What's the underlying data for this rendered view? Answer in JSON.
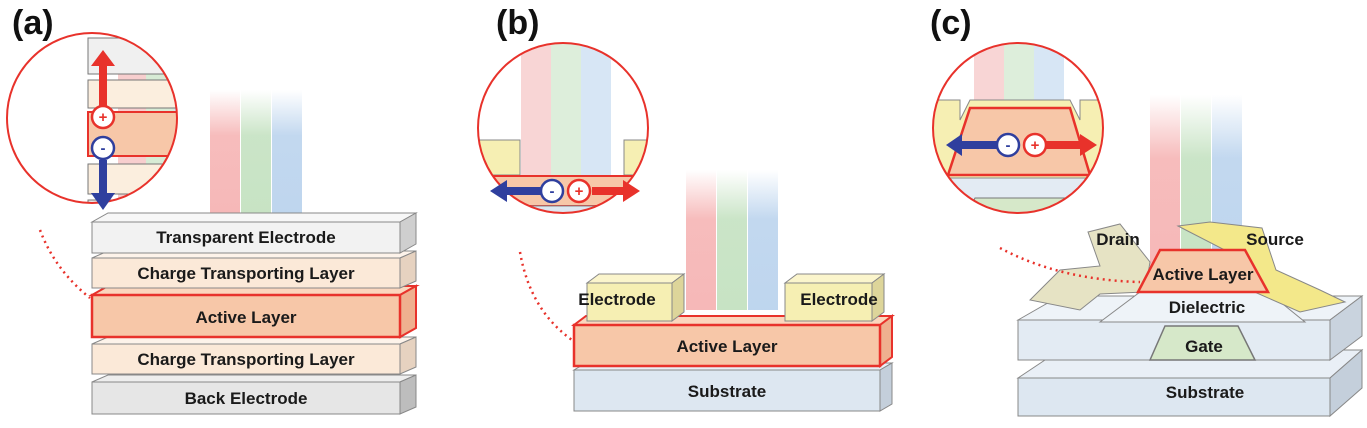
{
  "panels": [
    {
      "label": "(a)"
    },
    {
      "label": "(b)"
    },
    {
      "label": "(c)"
    }
  ],
  "panel_a": {
    "layers": [
      "Transparent Electrode",
      "Charge Transporting Layer",
      "Active Layer",
      "Charge Transporting Layer",
      "Back Electrode"
    ],
    "hole": "+",
    "electron": "-"
  },
  "panel_b": {
    "electrode_left": "Electrode",
    "electrode_right": "Electrode",
    "active": "Active Layer",
    "substrate": "Substrate",
    "electron": "-",
    "hole": "+"
  },
  "panel_c": {
    "drain": "Drain",
    "source": "Source",
    "active": "Active Layer",
    "dielectric": "Dielectric",
    "gate": "Gate",
    "substrate": "Substrate",
    "electron": "-",
    "hole": "+"
  },
  "colors": {
    "hole": "#e8322b",
    "electron": "#2f3f9e",
    "active_fill": "#f7c7a8",
    "electrode_fill": "#f6efb3",
    "ctl_fill": "#fbe9d8",
    "substrate_fill": "#dde7f1"
  }
}
